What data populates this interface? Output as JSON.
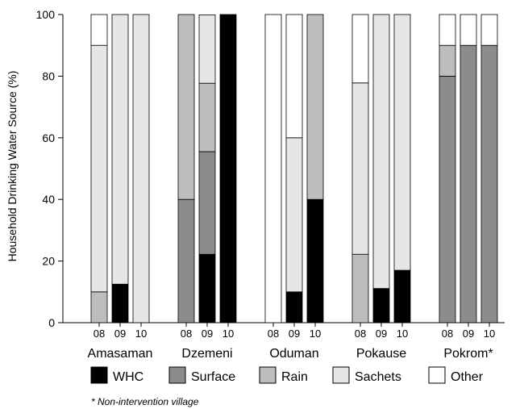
{
  "chart_data": {
    "type": "bar",
    "stacked": true,
    "ylabel": "Household Drinking Water Source (%)",
    "ylim": [
      0,
      100
    ],
    "yticks": [
      0,
      20,
      40,
      60,
      80,
      100
    ],
    "grid": false,
    "legend_position": "bottom",
    "footnote": "* Non-intervention village",
    "groups": [
      {
        "name": "Amasaman",
        "bars": [
          {
            "year": "08",
            "values": [
              0,
              0,
              10,
              80,
              10
            ]
          },
          {
            "year": "09",
            "values": [
              12.5,
              0,
              0,
              87.5,
              0
            ]
          },
          {
            "year": "10",
            "values": [
              0,
              0,
              0,
              100,
              0
            ]
          }
        ]
      },
      {
        "name": "Dzemeni",
        "bars": [
          {
            "year": "08",
            "values": [
              0,
              40,
              60,
              0,
              0
            ]
          },
          {
            "year": "09",
            "values": [
              22.2,
              33.3,
              22.2,
              22.2,
              0
            ]
          },
          {
            "year": "10",
            "values": [
              100,
              0,
              0,
              0,
              0
            ]
          }
        ]
      },
      {
        "name": "Oduman",
        "bars": [
          {
            "year": "08",
            "values": [
              0,
              0,
              0,
              0,
              100
            ]
          },
          {
            "year": "09",
            "values": [
              10,
              0,
              0,
              50,
              40
            ]
          },
          {
            "year": "10",
            "values": [
              40,
              0,
              60,
              0,
              0
            ]
          }
        ]
      },
      {
        "name": "Pokause",
        "bars": [
          {
            "year": "08",
            "values": [
              0,
              0,
              22.2,
              55.6,
              22.2
            ]
          },
          {
            "year": "09",
            "values": [
              11.1,
              0,
              0,
              88.9,
              0
            ]
          },
          {
            "year": "10",
            "values": [
              17,
              0,
              0,
              83,
              0
            ]
          }
        ]
      },
      {
        "name": "Pokrom*",
        "bars": [
          {
            "year": "08",
            "values": [
              0,
              80,
              10,
              0,
              10
            ]
          },
          {
            "year": "09",
            "values": [
              0,
              90,
              0,
              0,
              10
            ]
          },
          {
            "year": "10",
            "values": [
              0,
              90,
              0,
              0,
              10
            ]
          }
        ]
      }
    ],
    "series": [
      {
        "name": "WHC",
        "color": "#000000"
      },
      {
        "name": "Surface",
        "color": "#8c8c8c"
      },
      {
        "name": "Rain",
        "color": "#bdbdbd"
      },
      {
        "name": "Sachets",
        "color": "#e6e6e6"
      },
      {
        "name": "Other",
        "color": "#ffffff"
      }
    ]
  }
}
